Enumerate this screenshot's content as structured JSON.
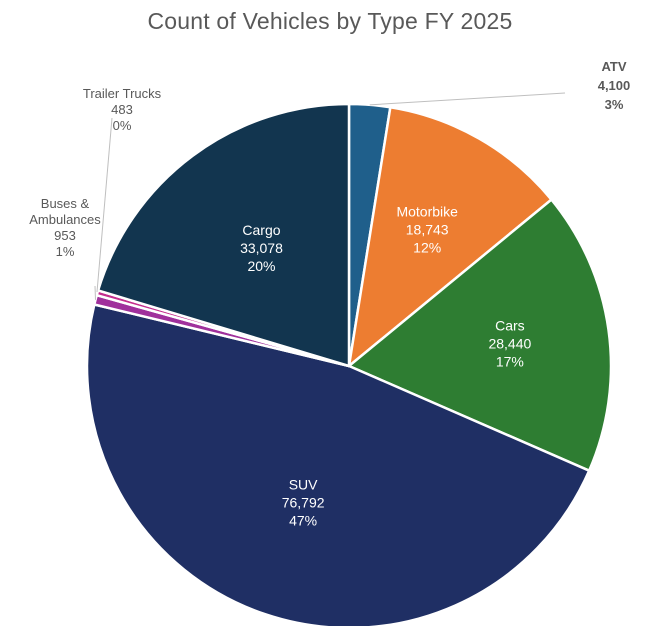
{
  "chart_data": {
    "type": "pie",
    "title": "Count of Vehicles by Type FY 2025",
    "slices": [
      {
        "name": "ATV",
        "value": 4100,
        "value_label": "4,100",
        "percent_label": "3%",
        "color": "#1F5F8B"
      },
      {
        "name": "Motorbike",
        "value": 18743,
        "value_label": "18,743",
        "percent_label": "12%",
        "color": "#ED7D31"
      },
      {
        "name": "Cars",
        "value": 28440,
        "value_label": "28,440",
        "percent_label": "17%",
        "color": "#2E7D32"
      },
      {
        "name": "SUV",
        "value": 76792,
        "value_label": "76,792",
        "percent_label": "47%",
        "color": "#1F2F64"
      },
      {
        "name": "Buses & Ambulances",
        "value": 953,
        "value_label": "953",
        "percent_label": "1%",
        "color": "#A0309C"
      },
      {
        "name": "Trailer Trucks",
        "value": 483,
        "value_label": "483",
        "percent_label": "0%",
        "color": "#C42E8E"
      },
      {
        "name": "Cargo",
        "value": 33078,
        "value_label": "33,078",
        "percent_label": "20%",
        "color": "#12354F"
      }
    ]
  }
}
